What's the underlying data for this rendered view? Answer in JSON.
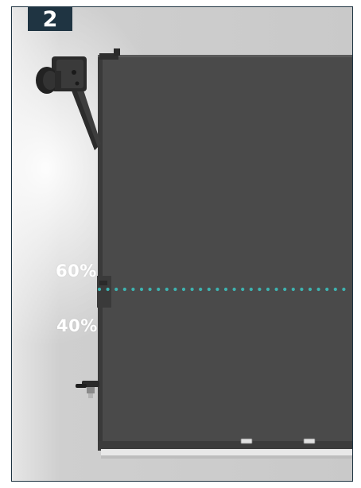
{
  "step": {
    "number": "2",
    "badge_color": "#1f3442"
  },
  "levels": {
    "upper_label": "60%",
    "lower_label": "40%",
    "divider_color": "#3db3b0"
  },
  "colors": {
    "frame_border": "#1f3442",
    "panel": "#4a4a4a",
    "background": "#cfcfcf"
  },
  "icons": {
    "mount": "wall-mount-bracket-icon",
    "valve": "drain-valve-icon"
  }
}
